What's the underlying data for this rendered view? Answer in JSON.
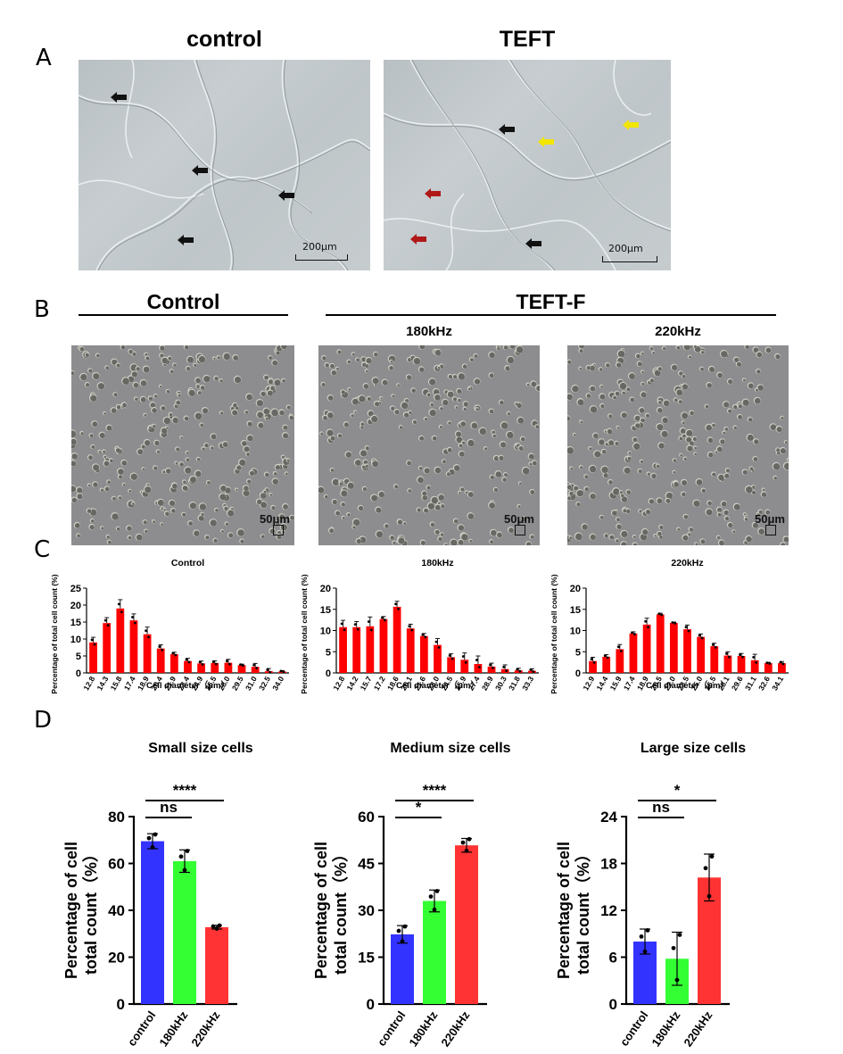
{
  "panel_labels": {
    "a": "A",
    "b": "B",
    "c": "C",
    "d": "D"
  },
  "panel_a": {
    "left_title": "control",
    "right_title": "TEFT",
    "left_scale": "200μm",
    "right_scale": "200μm",
    "colors": {
      "black_arrow": "#111111",
      "red_arrow": "#b01818",
      "yellow_arrow": "#f2e600"
    }
  },
  "panel_b": {
    "control_title": "Control",
    "group_title": "TEFT-F",
    "sub_180": "180kHz",
    "sub_220": "220kHz",
    "scale_control": "50μm",
    "scale_180": "50μm",
    "scale_220": "50μm"
  },
  "chart_data": [
    {
      "type": "bar",
      "title": "Control",
      "xlabel": "Cell diameter（μm）",
      "ylabel": "Percentage of total cell count (%)",
      "ylim": [
        0,
        25
      ],
      "yticks": [
        "0",
        "5",
        "10",
        "15",
        "20",
        "25"
      ],
      "bar_color": "#ff0000",
      "categories": [
        "12.8",
        "14.3",
        "15.8",
        "17.4",
        "18.9",
        "20.4",
        "21.9",
        "23.4",
        "24.9",
        "26.5",
        "28.0",
        "29.5",
        "31.0",
        "32.5",
        "34.0"
      ],
      "values": [
        9.0,
        14.7,
        19.0,
        15.5,
        11.4,
        7.2,
        5.5,
        3.5,
        2.8,
        2.9,
        3.0,
        2.3,
        1.8,
        0.5,
        0.4
      ],
      "errors": [
        1.5,
        1.6,
        2.6,
        1.9,
        2.1,
        1.1,
        0.6,
        0.8,
        0.7,
        0.7,
        1.0,
        0.3,
        1.0,
        0.8,
        0.3
      ]
    },
    {
      "type": "bar",
      "title": "180kHz",
      "xlabel": "Cell diameter（μm）",
      "ylabel": "Percentage of total cell count (%)",
      "ylim": [
        0,
        20
      ],
      "yticks": [
        "0",
        "5",
        "10",
        "15",
        "20"
      ],
      "bar_color": "#ff0000",
      "categories": [
        "12.8",
        "14.2",
        "15.7",
        "17.2",
        "18.6",
        "20.1",
        "21.6",
        "23.0",
        "24.5",
        "25.9",
        "27.4",
        "28.9",
        "30.3",
        "31.8",
        "33.3"
      ],
      "values": [
        10.8,
        10.8,
        11.0,
        12.7,
        15.6,
        10.5,
        8.7,
        6.6,
        3.7,
        3.1,
        2.1,
        1.5,
        0.9,
        0.6,
        0.5
      ],
      "errors": [
        1.6,
        1.3,
        2.2,
        0.6,
        1.3,
        1.0,
        0.6,
        1.5,
        0.8,
        1.6,
        1.9,
        0.8,
        1.0,
        0.5,
        0.5
      ]
    },
    {
      "type": "bar",
      "title": "220kHz",
      "xlabel": "Cell diameter（μm）",
      "ylabel": "Percentage of total cell count (%)",
      "ylim": [
        0,
        20
      ],
      "yticks": [
        "0",
        "5",
        "10",
        "15",
        "20"
      ],
      "bar_color": "#ff0000",
      "categories": [
        "12.9",
        "14.4",
        "15.9",
        "17.4",
        "18.9",
        "20.5",
        "22.0",
        "23.5",
        "25.0",
        "26.5",
        "28.1",
        "29.6",
        "31.1",
        "32.6",
        "34.1"
      ],
      "values": [
        2.8,
        3.8,
        5.6,
        9.3,
        11.4,
        13.8,
        11.8,
        10.3,
        8.5,
        6.3,
        4.1,
        4.0,
        3.0,
        2.3,
        2.3
      ],
      "errors": [
        0.9,
        0.5,
        1.1,
        0.4,
        1.5,
        0.3,
        0.2,
        1.0,
        0.7,
        0.7,
        0.9,
        0.6,
        1.4,
        0.2,
        0.4
      ]
    },
    {
      "type": "bar",
      "title": "Small size cells",
      "ylabel_line1": "Percentage of cell",
      "ylabel_line2": "total count（%）",
      "ylim": [
        0,
        80
      ],
      "yticks": [
        "0",
        "20",
        "40",
        "60",
        "80"
      ],
      "categories": [
        "control",
        "180kHz",
        "220kHz"
      ],
      "values": [
        69.5,
        61.0,
        32.8
      ],
      "errors": [
        3.2,
        4.8,
        0.8
      ],
      "colors": [
        "#3333ff",
        "#33ff33",
        "#ff3333"
      ],
      "significance": [
        {
          "from": 0,
          "to": 1,
          "label": "ns"
        },
        {
          "from": 0,
          "to": 2,
          "label": "****"
        }
      ]
    },
    {
      "type": "bar",
      "title": "Medium size cells",
      "ylabel_line1": "Percentage of cell",
      "ylabel_line2": "total count（%）",
      "ylim": [
        0,
        60
      ],
      "yticks": [
        "0",
        "15",
        "30",
        "45",
        "60"
      ],
      "categories": [
        "control",
        "180kHz",
        "220kHz"
      ],
      "values": [
        22.3,
        33.0,
        50.8
      ],
      "errors": [
        2.8,
        3.5,
        2.2
      ],
      "colors": [
        "#3333ff",
        "#33ff33",
        "#ff3333"
      ],
      "significance": [
        {
          "from": 0,
          "to": 1,
          "label": "*"
        },
        {
          "from": 0,
          "to": 2,
          "label": "****"
        }
      ]
    },
    {
      "type": "bar",
      "title": "Large size cells",
      "ylabel_line1": "Percentage of cell",
      "ylabel_line2": "total count（%）",
      "ylim": [
        0,
        24
      ],
      "yticks": [
        "0",
        "6",
        "12",
        "18",
        "24"
      ],
      "categories": [
        "control",
        "180kHz",
        "220kHz"
      ],
      "values": [
        8.0,
        5.8,
        16.2
      ],
      "errors": [
        1.6,
        3.4,
        3.0
      ],
      "colors": [
        "#3333ff",
        "#33ff33",
        "#ff3333"
      ],
      "significance": [
        {
          "from": 0,
          "to": 1,
          "label": "ns"
        },
        {
          "from": 0,
          "to": 2,
          "label": "*"
        }
      ]
    }
  ]
}
